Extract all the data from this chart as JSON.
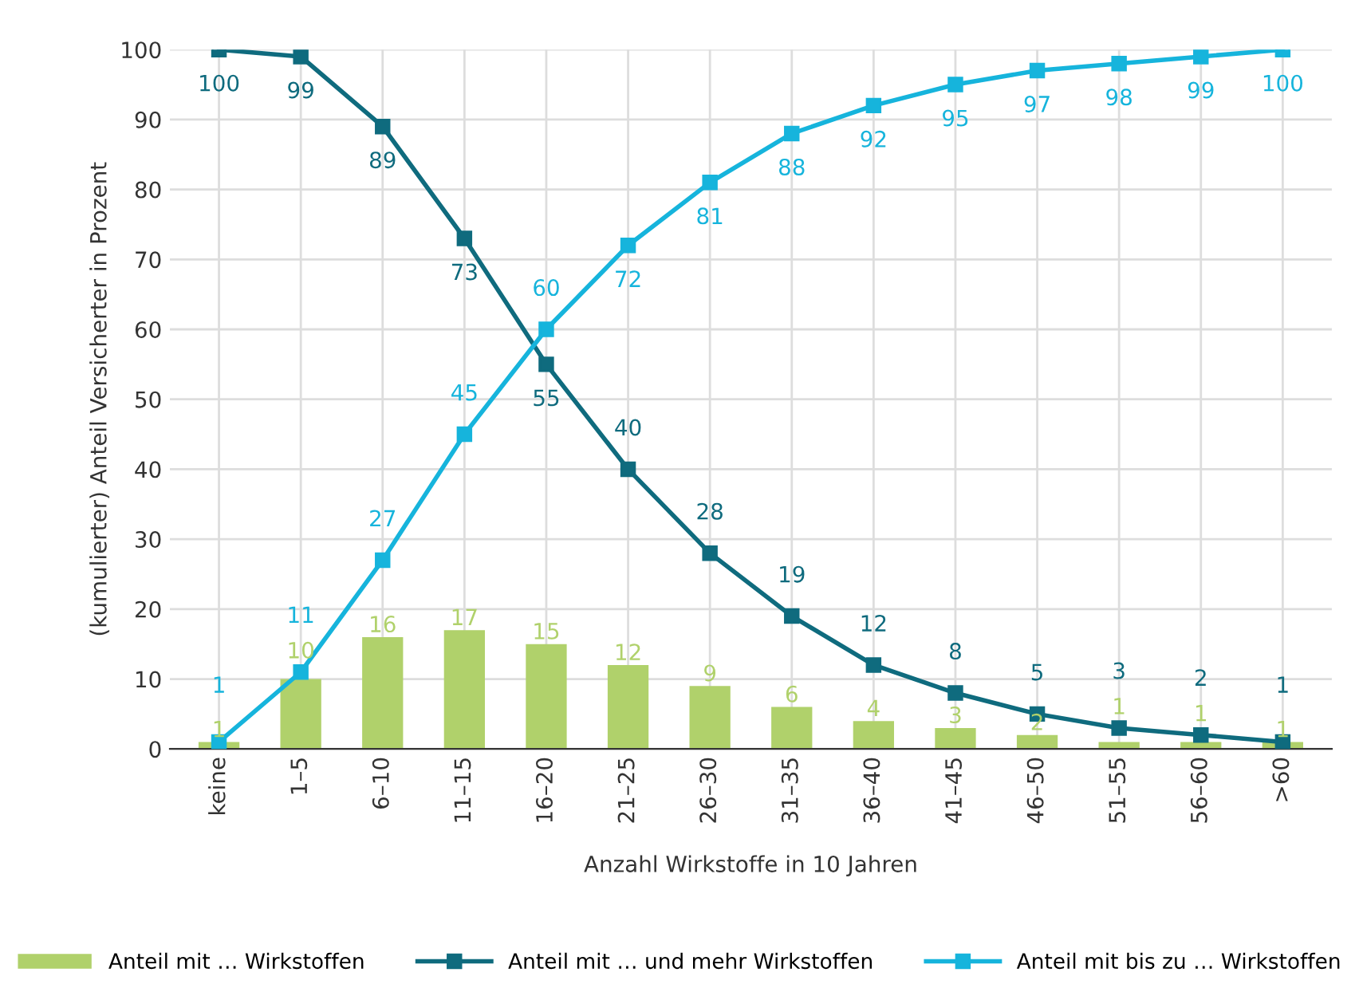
{
  "chart_data": {
    "type": "bar",
    "xlabel": "Anzahl Wirkstoffe in 10 Jahren",
    "ylabel": "(kumulierter) Anteil Versicherter in Prozent",
    "categories": [
      "keine",
      "1–5",
      "6–10",
      "11–15",
      "16–20",
      "21–25",
      "26–30",
      "31–35",
      "36–40",
      "41–45",
      "46–50",
      "51–55",
      "56–60",
      ">60"
    ],
    "series": [
      {
        "name": "Anteil mit … Wirkstoffen",
        "color": "#b0d16b",
        "values": [
          1,
          10,
          16,
          17,
          15,
          12,
          9,
          6,
          4,
          3,
          2,
          1,
          1,
          1
        ]
      },
      {
        "name": "Anteil mit … und mehr Wirkstoffen",
        "type": "line",
        "color": "#0f6b7e",
        "values": [
          100,
          99,
          89,
          73,
          55,
          40,
          28,
          19,
          12,
          8,
          5,
          3,
          2,
          1
        ]
      },
      {
        "name": "Anteil mit bis zu … Wirkstoffen",
        "type": "line",
        "color": "#16b4dc",
        "values": [
          1,
          11,
          27,
          45,
          60,
          72,
          81,
          88,
          92,
          95,
          97,
          98,
          99,
          100
        ]
      }
    ],
    "ylim": [
      0,
      100
    ],
    "yticks": [
      0,
      10,
      20,
      30,
      40,
      50,
      60,
      70,
      80,
      90,
      100
    ],
    "grid": true,
    "legend": "bottom",
    "marker": "square",
    "line_style": "solid",
    "data_labels": true
  }
}
